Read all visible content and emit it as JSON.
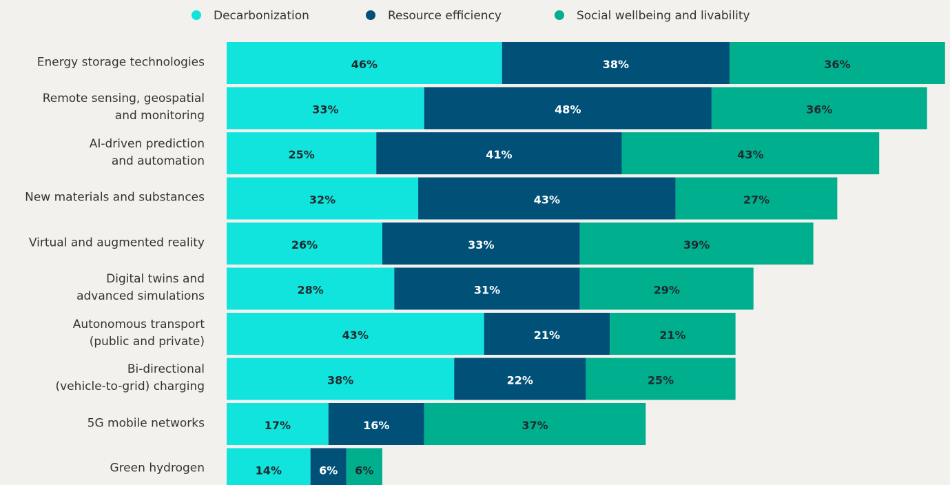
{
  "chart_data": {
    "type": "stacked-bar-horizontal",
    "categories": [
      "Energy storage technologies",
      "Remote sensing, geospatial\nand monitoring",
      "AI-driven prediction\nand automation",
      "New materials and substances",
      "Virtual and augmented reality",
      "Digital twins and\nadvanced simulations",
      "Autonomous transport\n(public and private)",
      "Bi-directional\n(vehicle-to-grid) charging",
      "5G mobile networks",
      "Green hydrogen"
    ],
    "series": [
      {
        "name": "Decarbonization",
        "color": "#10e4dc",
        "label_color": "#1e2a2f",
        "values": [
          46,
          33,
          25,
          32,
          26,
          28,
          43,
          38,
          17,
          14
        ],
        "value_labels": [
          "46%",
          "33%",
          "25%",
          "32%",
          "26%",
          "28%",
          "43%",
          "38%",
          "17%",
          "14%"
        ]
      },
      {
        "name": "Resource efficiency",
        "color": "#005078",
        "label_color": "#ffffff",
        "values": [
          38,
          48,
          41,
          43,
          33,
          31,
          21,
          22,
          16,
          6
        ],
        "value_labels": [
          "38%",
          "48%",
          "41%",
          "43%",
          "33%",
          "31%",
          "21%",
          "22%",
          "16%",
          "6%"
        ]
      },
      {
        "name": "Social wellbeing and livability",
        "color": "#00af8e",
        "label_color": "#1e2a2f",
        "values": [
          36,
          36,
          43,
          27,
          39,
          29,
          21,
          25,
          37,
          6
        ],
        "value_labels": [
          "36%",
          "36%",
          "43%",
          "27%",
          "39%",
          "29%",
          "21%",
          "25%",
          "37%",
          "6%"
        ]
      }
    ],
    "legend": "top"
  }
}
